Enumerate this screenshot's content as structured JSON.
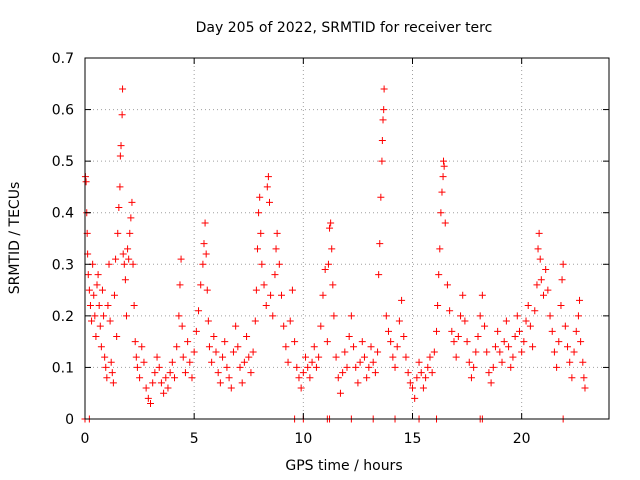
{
  "chart_data": {
    "type": "scatter",
    "title": "Day 205 of 2022, SRMTID for receiver terc",
    "xlabel": "GPS time / hours",
    "ylabel": "SRMTID / TECUs",
    "xlim": [
      0,
      24
    ],
    "ylim": [
      0,
      0.7
    ],
    "xticks": [
      0,
      5,
      10,
      15,
      20
    ],
    "xtick_labels": [
      "0",
      "5",
      "10",
      "15",
      "20"
    ],
    "yticks": [
      0,
      0.1,
      0.2,
      0.3,
      0.4,
      0.5,
      0.6,
      0.7
    ],
    "ytick_labels": [
      "0",
      "0.1",
      "0.2",
      "0.3",
      "0.4",
      "0.5",
      "0.6",
      "0.7"
    ],
    "grid": true,
    "marker": "+",
    "color": "#ff0000",
    "series": [
      {
        "name": "SRMTID",
        "points": [
          [
            0.02,
            0.47
          ],
          [
            0.05,
            0.46
          ],
          [
            0.08,
            0.4
          ],
          [
            0.1,
            0.36
          ],
          [
            0.12,
            0.32
          ],
          [
            0.15,
            0.28
          ],
          [
            0.2,
            0.25
          ],
          [
            0.25,
            0.22
          ],
          [
            0.3,
            0.19
          ],
          [
            0.35,
            0.3
          ],
          [
            0.4,
            0.24
          ],
          [
            0.45,
            0.2
          ],
          [
            0.5,
            0.16
          ],
          [
            0.55,
            0.26
          ],
          [
            0.6,
            0.28
          ],
          [
            0.65,
            0.22
          ],
          [
            0.7,
            0.18
          ],
          [
            0.75,
            0.14
          ],
          [
            0.8,
            0.25
          ],
          [
            0.85,
            0.2
          ],
          [
            0.9,
            0.12
          ],
          [
            0.95,
            0.1
          ],
          [
            1.0,
            0.08
          ],
          [
            1.05,
            0.22
          ],
          [
            1.1,
            0.3
          ],
          [
            1.15,
            0.19
          ],
          [
            1.2,
            0.11
          ],
          [
            1.25,
            0.09
          ],
          [
            1.3,
            0.07
          ],
          [
            1.35,
            0.24
          ],
          [
            1.4,
            0.31
          ],
          [
            1.45,
            0.16
          ],
          [
            1.5,
            0.36
          ],
          [
            1.55,
            0.41
          ],
          [
            1.6,
            0.45
          ],
          [
            1.62,
            0.51
          ],
          [
            1.65,
            0.53
          ],
          [
            1.7,
            0.59
          ],
          [
            1.72,
            0.64
          ],
          [
            1.75,
            0.32
          ],
          [
            1.8,
            0.3
          ],
          [
            1.85,
            0.27
          ],
          [
            1.9,
            0.2
          ],
          [
            1.95,
            0.33
          ],
          [
            2.0,
            0.31
          ],
          [
            2.05,
            0.36
          ],
          [
            2.1,
            0.39
          ],
          [
            2.15,
            0.42
          ],
          [
            2.2,
            0.3
          ],
          [
            2.25,
            0.22
          ],
          [
            2.3,
            0.15
          ],
          [
            2.35,
            0.12
          ],
          [
            2.4,
            0.1
          ],
          [
            2.5,
            0.08
          ],
          [
            2.6,
            0.14
          ],
          [
            2.7,
            0.11
          ],
          [
            2.8,
            0.06
          ],
          [
            2.9,
            0.04
          ],
          [
            3.0,
            0.03
          ],
          [
            3.1,
            0.07
          ],
          [
            3.2,
            0.09
          ],
          [
            3.3,
            0.12
          ],
          [
            3.4,
            0.1
          ],
          [
            3.5,
            0.07
          ],
          [
            3.6,
            0.05
          ],
          [
            3.7,
            0.08
          ],
          [
            3.8,
            0.06
          ],
          [
            3.9,
            0.09
          ],
          [
            4.0,
            0.11
          ],
          [
            4.1,
            0.08
          ],
          [
            4.2,
            0.14
          ],
          [
            4.3,
            0.2
          ],
          [
            4.35,
            0.26
          ],
          [
            4.4,
            0.31
          ],
          [
            4.45,
            0.18
          ],
          [
            4.5,
            0.12
          ],
          [
            4.6,
            0.09
          ],
          [
            4.7,
            0.15
          ],
          [
            4.8,
            0.11
          ],
          [
            4.9,
            0.08
          ],
          [
            5.0,
            0.13
          ],
          [
            5.1,
            0.17
          ],
          [
            5.2,
            0.21
          ],
          [
            5.3,
            0.26
          ],
          [
            5.4,
            0.3
          ],
          [
            5.45,
            0.34
          ],
          [
            5.5,
            0.38
          ],
          [
            5.55,
            0.32
          ],
          [
            5.6,
            0.25
          ],
          [
            5.65,
            0.19
          ],
          [
            5.7,
            0.14
          ],
          [
            5.8,
            0.11
          ],
          [
            5.9,
            0.16
          ],
          [
            6.0,
            0.13
          ],
          [
            6.1,
            0.09
          ],
          [
            6.2,
            0.07
          ],
          [
            6.3,
            0.12
          ],
          [
            6.4,
            0.15
          ],
          [
            6.5,
            0.1
          ],
          [
            6.6,
            0.08
          ],
          [
            6.7,
            0.06
          ],
          [
            6.8,
            0.13
          ],
          [
            6.9,
            0.18
          ],
          [
            7.0,
            0.14
          ],
          [
            7.1,
            0.1
          ],
          [
            7.2,
            0.07
          ],
          [
            7.3,
            0.11
          ],
          [
            7.4,
            0.16
          ],
          [
            7.5,
            0.12
          ],
          [
            7.6,
            0.09
          ],
          [
            7.7,
            0.13
          ],
          [
            7.8,
            0.19
          ],
          [
            7.85,
            0.25
          ],
          [
            7.9,
            0.33
          ],
          [
            7.95,
            0.4
          ],
          [
            8.0,
            0.43
          ],
          [
            8.05,
            0.36
          ],
          [
            8.1,
            0.3
          ],
          [
            8.2,
            0.26
          ],
          [
            8.3,
            0.22
          ],
          [
            8.35,
            0.45
          ],
          [
            8.4,
            0.47
          ],
          [
            8.45,
            0.42
          ],
          [
            8.5,
            0.24
          ],
          [
            8.6,
            0.2
          ],
          [
            8.7,
            0.28
          ],
          [
            8.75,
            0.33
          ],
          [
            8.8,
            0.36
          ],
          [
            8.9,
            0.3
          ],
          [
            9.0,
            0.24
          ],
          [
            9.1,
            0.18
          ],
          [
            9.2,
            0.14
          ],
          [
            9.3,
            0.11
          ],
          [
            9.4,
            0.19
          ],
          [
            9.5,
            0.25
          ],
          [
            9.6,
            0.15
          ],
          [
            9.7,
            0.1
          ],
          [
            9.8,
            0.08
          ],
          [
            9.9,
            0.06
          ],
          [
            10.0,
            0.09
          ],
          [
            10.1,
            0.12
          ],
          [
            10.2,
            0.1
          ],
          [
            10.3,
            0.08
          ],
          [
            10.4,
            0.11
          ],
          [
            10.5,
            0.14
          ],
          [
            10.6,
            0.1
          ],
          [
            10.7,
            0.12
          ],
          [
            10.8,
            0.18
          ],
          [
            10.9,
            0.24
          ],
          [
            11.0,
            0.29
          ],
          [
            11.1,
            0.15
          ],
          [
            11.15,
            0.3
          ],
          [
            11.2,
            0.37
          ],
          [
            11.25,
            0.38
          ],
          [
            11.3,
            0.33
          ],
          [
            11.35,
            0.26
          ],
          [
            11.4,
            0.2
          ],
          [
            11.5,
            0.12
          ],
          [
            11.6,
            0.08
          ],
          [
            11.7,
            0.05
          ],
          [
            11.8,
            0.09
          ],
          [
            11.9,
            0.13
          ],
          [
            12.0,
            0.1
          ],
          [
            12.1,
            0.16
          ],
          [
            12.2,
            0.2
          ],
          [
            12.3,
            0.14
          ],
          [
            12.4,
            0.1
          ],
          [
            12.5,
            0.07
          ],
          [
            12.6,
            0.11
          ],
          [
            12.7,
            0.15
          ],
          [
            12.8,
            0.12
          ],
          [
            12.9,
            0.08
          ],
          [
            13.0,
            0.1
          ],
          [
            13.1,
            0.14
          ],
          [
            13.2,
            0.11
          ],
          [
            13.3,
            0.09
          ],
          [
            13.4,
            0.13
          ],
          [
            13.45,
            0.28
          ],
          [
            13.5,
            0.34
          ],
          [
            13.55,
            0.43
          ],
          [
            13.6,
            0.5
          ],
          [
            13.62,
            0.54
          ],
          [
            13.65,
            0.58
          ],
          [
            13.68,
            0.6
          ],
          [
            13.7,
            0.64
          ],
          [
            13.8,
            0.2
          ],
          [
            13.9,
            0.17
          ],
          [
            14.0,
            0.15
          ],
          [
            14.1,
            0.12
          ],
          [
            14.2,
            0.1
          ],
          [
            14.3,
            0.14
          ],
          [
            14.4,
            0.19
          ],
          [
            14.5,
            0.23
          ],
          [
            14.6,
            0.16
          ],
          [
            14.7,
            0.12
          ],
          [
            14.8,
            0.09
          ],
          [
            14.9,
            0.07
          ],
          [
            15.0,
            0.06
          ],
          [
            15.1,
            0.04
          ],
          [
            15.2,
            0.08
          ],
          [
            15.3,
            0.11
          ],
          [
            15.4,
            0.09
          ],
          [
            15.5,
            0.06
          ],
          [
            15.6,
            0.08
          ],
          [
            15.7,
            0.1
          ],
          [
            15.8,
            0.12
          ],
          [
            15.9,
            0.09
          ],
          [
            16.0,
            0.13
          ],
          [
            16.1,
            0.17
          ],
          [
            16.15,
            0.22
          ],
          [
            16.2,
            0.28
          ],
          [
            16.25,
            0.33
          ],
          [
            16.3,
            0.4
          ],
          [
            16.35,
            0.44
          ],
          [
            16.4,
            0.47
          ],
          [
            16.42,
            0.5
          ],
          [
            16.45,
            0.49
          ],
          [
            16.5,
            0.38
          ],
          [
            16.6,
            0.26
          ],
          [
            16.7,
            0.21
          ],
          [
            16.8,
            0.17
          ],
          [
            16.9,
            0.15
          ],
          [
            17.0,
            0.12
          ],
          [
            17.1,
            0.16
          ],
          [
            17.2,
            0.2
          ],
          [
            17.3,
            0.24
          ],
          [
            17.4,
            0.19
          ],
          [
            17.5,
            0.15
          ],
          [
            17.6,
            0.11
          ],
          [
            17.7,
            0.08
          ],
          [
            17.8,
            0.1
          ],
          [
            17.9,
            0.13
          ],
          [
            18.0,
            0.16
          ],
          [
            18.1,
            0.2
          ],
          [
            18.2,
            0.24
          ],
          [
            18.3,
            0.18
          ],
          [
            18.4,
            0.13
          ],
          [
            18.5,
            0.09
          ],
          [
            18.6,
            0.07
          ],
          [
            18.7,
            0.1
          ],
          [
            18.8,
            0.14
          ],
          [
            18.9,
            0.17
          ],
          [
            19.0,
            0.13
          ],
          [
            19.1,
            0.11
          ],
          [
            19.2,
            0.15
          ],
          [
            19.3,
            0.19
          ],
          [
            19.4,
            0.14
          ],
          [
            19.5,
            0.1
          ],
          [
            19.6,
            0.12
          ],
          [
            19.7,
            0.16
          ],
          [
            19.8,
            0.2
          ],
          [
            19.9,
            0.17
          ],
          [
            20.0,
            0.13
          ],
          [
            20.1,
            0.15
          ],
          [
            20.2,
            0.19
          ],
          [
            20.3,
            0.22
          ],
          [
            20.4,
            0.18
          ],
          [
            20.5,
            0.14
          ],
          [
            20.6,
            0.21
          ],
          [
            20.7,
            0.26
          ],
          [
            20.75,
            0.33
          ],
          [
            20.8,
            0.36
          ],
          [
            20.85,
            0.31
          ],
          [
            20.9,
            0.27
          ],
          [
            21.0,
            0.24
          ],
          [
            21.1,
            0.29
          ],
          [
            21.2,
            0.25
          ],
          [
            21.3,
            0.2
          ],
          [
            21.4,
            0.17
          ],
          [
            21.5,
            0.13
          ],
          [
            21.6,
            0.1
          ],
          [
            21.7,
            0.15
          ],
          [
            21.8,
            0.22
          ],
          [
            21.85,
            0.27
          ],
          [
            21.9,
            0.3
          ],
          [
            22.0,
            0.18
          ],
          [
            22.1,
            0.14
          ],
          [
            22.2,
            0.11
          ],
          [
            22.3,
            0.08
          ],
          [
            22.4,
            0.13
          ],
          [
            22.5,
            0.17
          ],
          [
            22.6,
            0.2
          ],
          [
            22.65,
            0.23
          ],
          [
            22.7,
            0.15
          ],
          [
            22.8,
            0.11
          ],
          [
            22.85,
            0.08
          ],
          [
            22.9,
            0.06
          ],
          [
            0.0,
            0.0
          ],
          [
            0.2,
            0.0
          ],
          [
            9.6,
            0.0
          ],
          [
            10.0,
            0.0
          ],
          [
            11.1,
            0.0
          ],
          [
            11.2,
            0.0
          ],
          [
            12.2,
            0.0
          ],
          [
            13.2,
            0.0
          ],
          [
            14.2,
            0.0
          ],
          [
            15.3,
            0.0
          ],
          [
            16.1,
            0.0
          ],
          [
            18.1,
            0.0
          ],
          [
            18.2,
            0.0
          ],
          [
            21.9,
            0.0
          ]
        ]
      }
    ]
  }
}
